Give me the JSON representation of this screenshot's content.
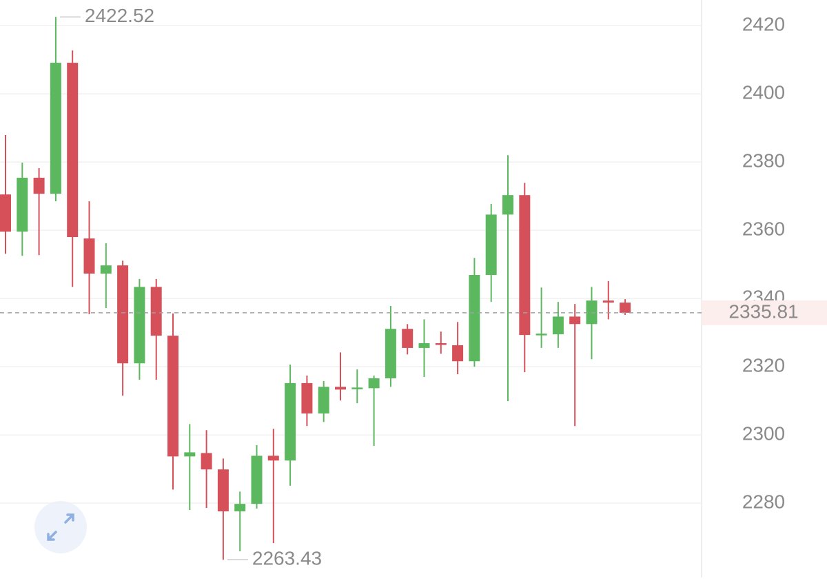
{
  "chart_data": {
    "type": "candlestick",
    "open": [
      2370.5,
      2359.6,
      2375.4,
      2370.7,
      2409.1,
      2357.6,
      2347.3,
      2349.7,
      2321.0,
      2343.4,
      2329.1,
      2293.7,
      2294.7,
      2289.9,
      2277.6,
      2279.8,
      2293.9,
      2292.5,
      2315.2,
      2306.3,
      2314.1,
      2313.5,
      2313.7,
      2316.6,
      2331.1,
      2325.5,
      2326.9,
      2326.3,
      2321.6,
      2346.9,
      2364.6,
      2370.3,
      2329.3,
      2329.5,
      2334.7,
      2332.5,
      2339.4,
      2338.8
    ],
    "high": [
      2387.9,
      2379.8,
      2378.2,
      2422.52,
      2412.7,
      2368.5,
      2356.2,
      2351.1,
      2345.7,
      2345.7,
      2335.6,
      2303.2,
      2301.4,
      2293.1,
      2283.4,
      2297.0,
      2301.8,
      2320.6,
      2317.4,
      2315.8,
      2324.2,
      2319.2,
      2317.4,
      2337.8,
      2332.5,
      2333.9,
      2330.3,
      2333.1,
      2351.9,
      2367.7,
      2382.0,
      2373.9,
      2343.2,
      2339.0,
      2338.4,
      2343.4,
      2345.1,
      2339.8
    ],
    "low": [
      2353.1,
      2352.5,
      2352.7,
      2368.5,
      2343.4,
      2335.4,
      2337.2,
      2311.5,
      2316.2,
      2316.2,
      2284.0,
      2278.0,
      2278.6,
      2263.43,
      2265.9,
      2278.4,
      2268.3,
      2285.1,
      2302.6,
      2303.8,
      2310.1,
      2309.3,
      2296.8,
      2314.1,
      2323.6,
      2317.0,
      2323.8,
      2317.8,
      2320.0,
      2339.0,
      2309.9,
      2318.4,
      2325.5,
      2325.5,
      2302.6,
      2322.2,
      2333.9,
      2335.2
    ],
    "close": [
      2359.6,
      2375.4,
      2370.7,
      2409.1,
      2358.0,
      2347.3,
      2349.7,
      2321.0,
      2343.4,
      2329.1,
      2293.7,
      2294.9,
      2289.9,
      2277.6,
      2279.8,
      2293.9,
      2292.5,
      2315.2,
      2306.3,
      2314.1,
      2313.3,
      2313.9,
      2316.6,
      2331.1,
      2325.5,
      2326.9,
      2326.5,
      2321.6,
      2346.9,
      2364.6,
      2370.3,
      2329.3,
      2329.7,
      2334.7,
      2332.5,
      2339.4,
      2338.8,
      2335.81
    ],
    "up_color": "#5cb85f",
    "down_color": "#d6505a",
    "ylim": [
      2256.6,
      2427.5
    ],
    "yticks": [
      2280,
      2300,
      2320,
      2340,
      2360,
      2380,
      2400,
      2420
    ],
    "grid": true
  }
}
